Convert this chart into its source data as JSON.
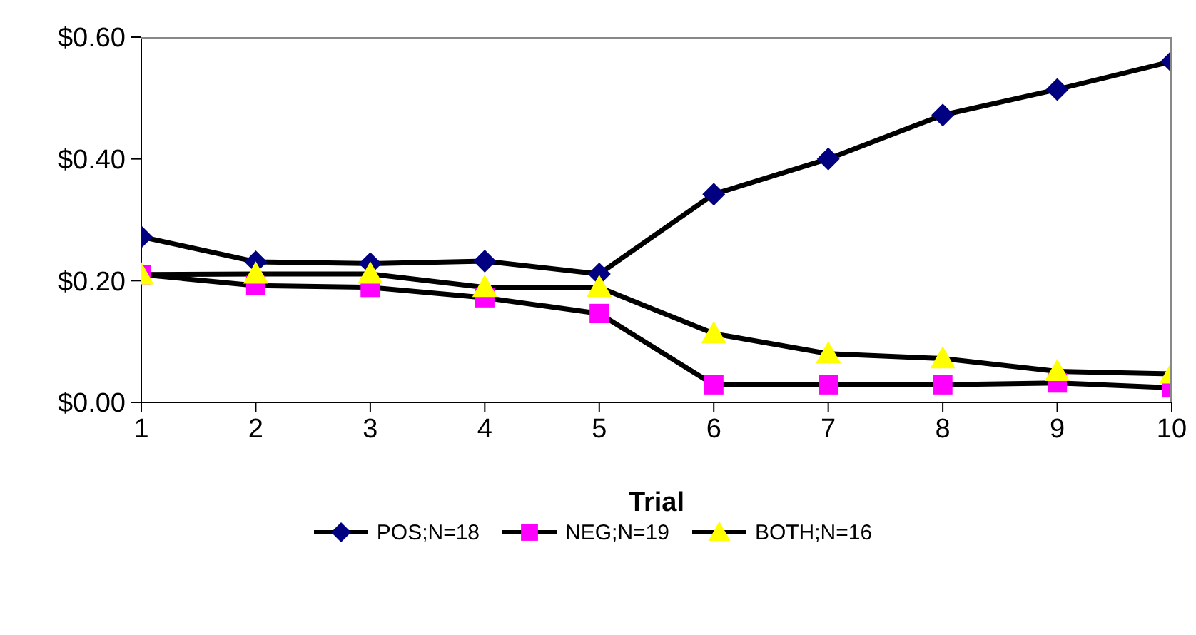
{
  "chart_data": {
    "type": "line",
    "xlabel": "Trial",
    "x": [
      1,
      2,
      3,
      4,
      5,
      6,
      7,
      8,
      9,
      10
    ],
    "xlim": [
      1,
      10
    ],
    "xticks": [
      1,
      2,
      3,
      4,
      5,
      6,
      7,
      8,
      9,
      10
    ],
    "ylim": [
      0,
      0.6
    ],
    "yticks": [
      {
        "value": 0,
        "label": "$0.00"
      },
      {
        "value": 0.2,
        "label": "$0.20"
      },
      {
        "value": 0.4,
        "label": "$0.40"
      },
      {
        "value": 0.6,
        "label": "$0.60"
      }
    ],
    "grid": false,
    "legend": "bottom",
    "series": [
      {
        "name": "POS;N=18",
        "color": "#000080",
        "marker": "diamond",
        "values": [
          0.272,
          0.231,
          0.228,
          0.232,
          0.211,
          0.342,
          0.4,
          0.472,
          0.514,
          0.56
        ]
      },
      {
        "name": "NEG;N=19",
        "color": "#ff00ff",
        "marker": "square",
        "values": [
          0.21,
          0.192,
          0.189,
          0.172,
          0.146,
          0.029,
          0.029,
          0.029,
          0.032,
          0.024
        ]
      },
      {
        "name": "BOTH;N=16",
        "color": "#ffff00",
        "marker": "triangle",
        "values": [
          0.21,
          0.211,
          0.211,
          0.189,
          0.189,
          0.113,
          0.08,
          0.072,
          0.051,
          0.047
        ]
      }
    ]
  }
}
